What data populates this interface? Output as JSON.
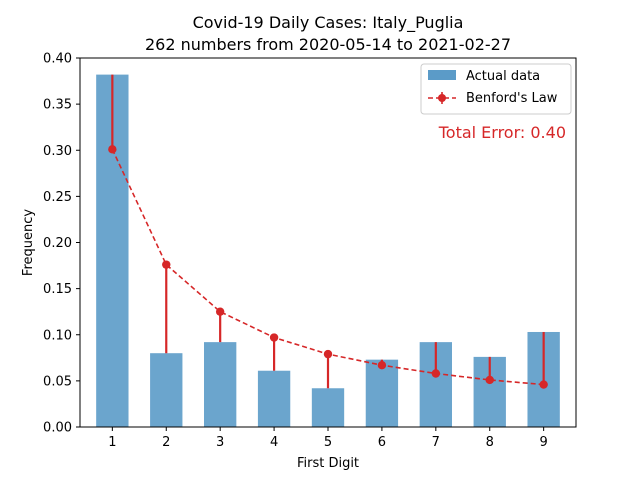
{
  "chart_data": {
    "type": "bar",
    "title": "Covid-19 Daily Cases: Italy_Puglia",
    "subtitle": "262 numbers from 2020-05-14 to 2021-02-27",
    "xlabel": "First Digit",
    "ylabel": "Frequency",
    "categories": [
      "1",
      "2",
      "3",
      "4",
      "5",
      "6",
      "7",
      "8",
      "9"
    ],
    "ylim": [
      0,
      0.4
    ],
    "yticks": [
      "0.00",
      "0.05",
      "0.10",
      "0.15",
      "0.20",
      "0.25",
      "0.30",
      "0.35",
      "0.40"
    ],
    "series": [
      {
        "name": "Actual data",
        "kind": "bar",
        "color": "#5b9bc8",
        "values": [
          0.382,
          0.08,
          0.092,
          0.061,
          0.042,
          0.073,
          0.092,
          0.076,
          0.103
        ]
      },
      {
        "name": "Benford's Law",
        "kind": "line-dashed-markers",
        "color": "#d62728",
        "values": [
          0.301,
          0.176,
          0.125,
          0.097,
          0.079,
          0.067,
          0.058,
          0.051,
          0.046
        ]
      }
    ],
    "annotation": {
      "text": "Total Error: 0.40",
      "color": "#d62728"
    },
    "legend_position": "top-right",
    "grid": false
  }
}
